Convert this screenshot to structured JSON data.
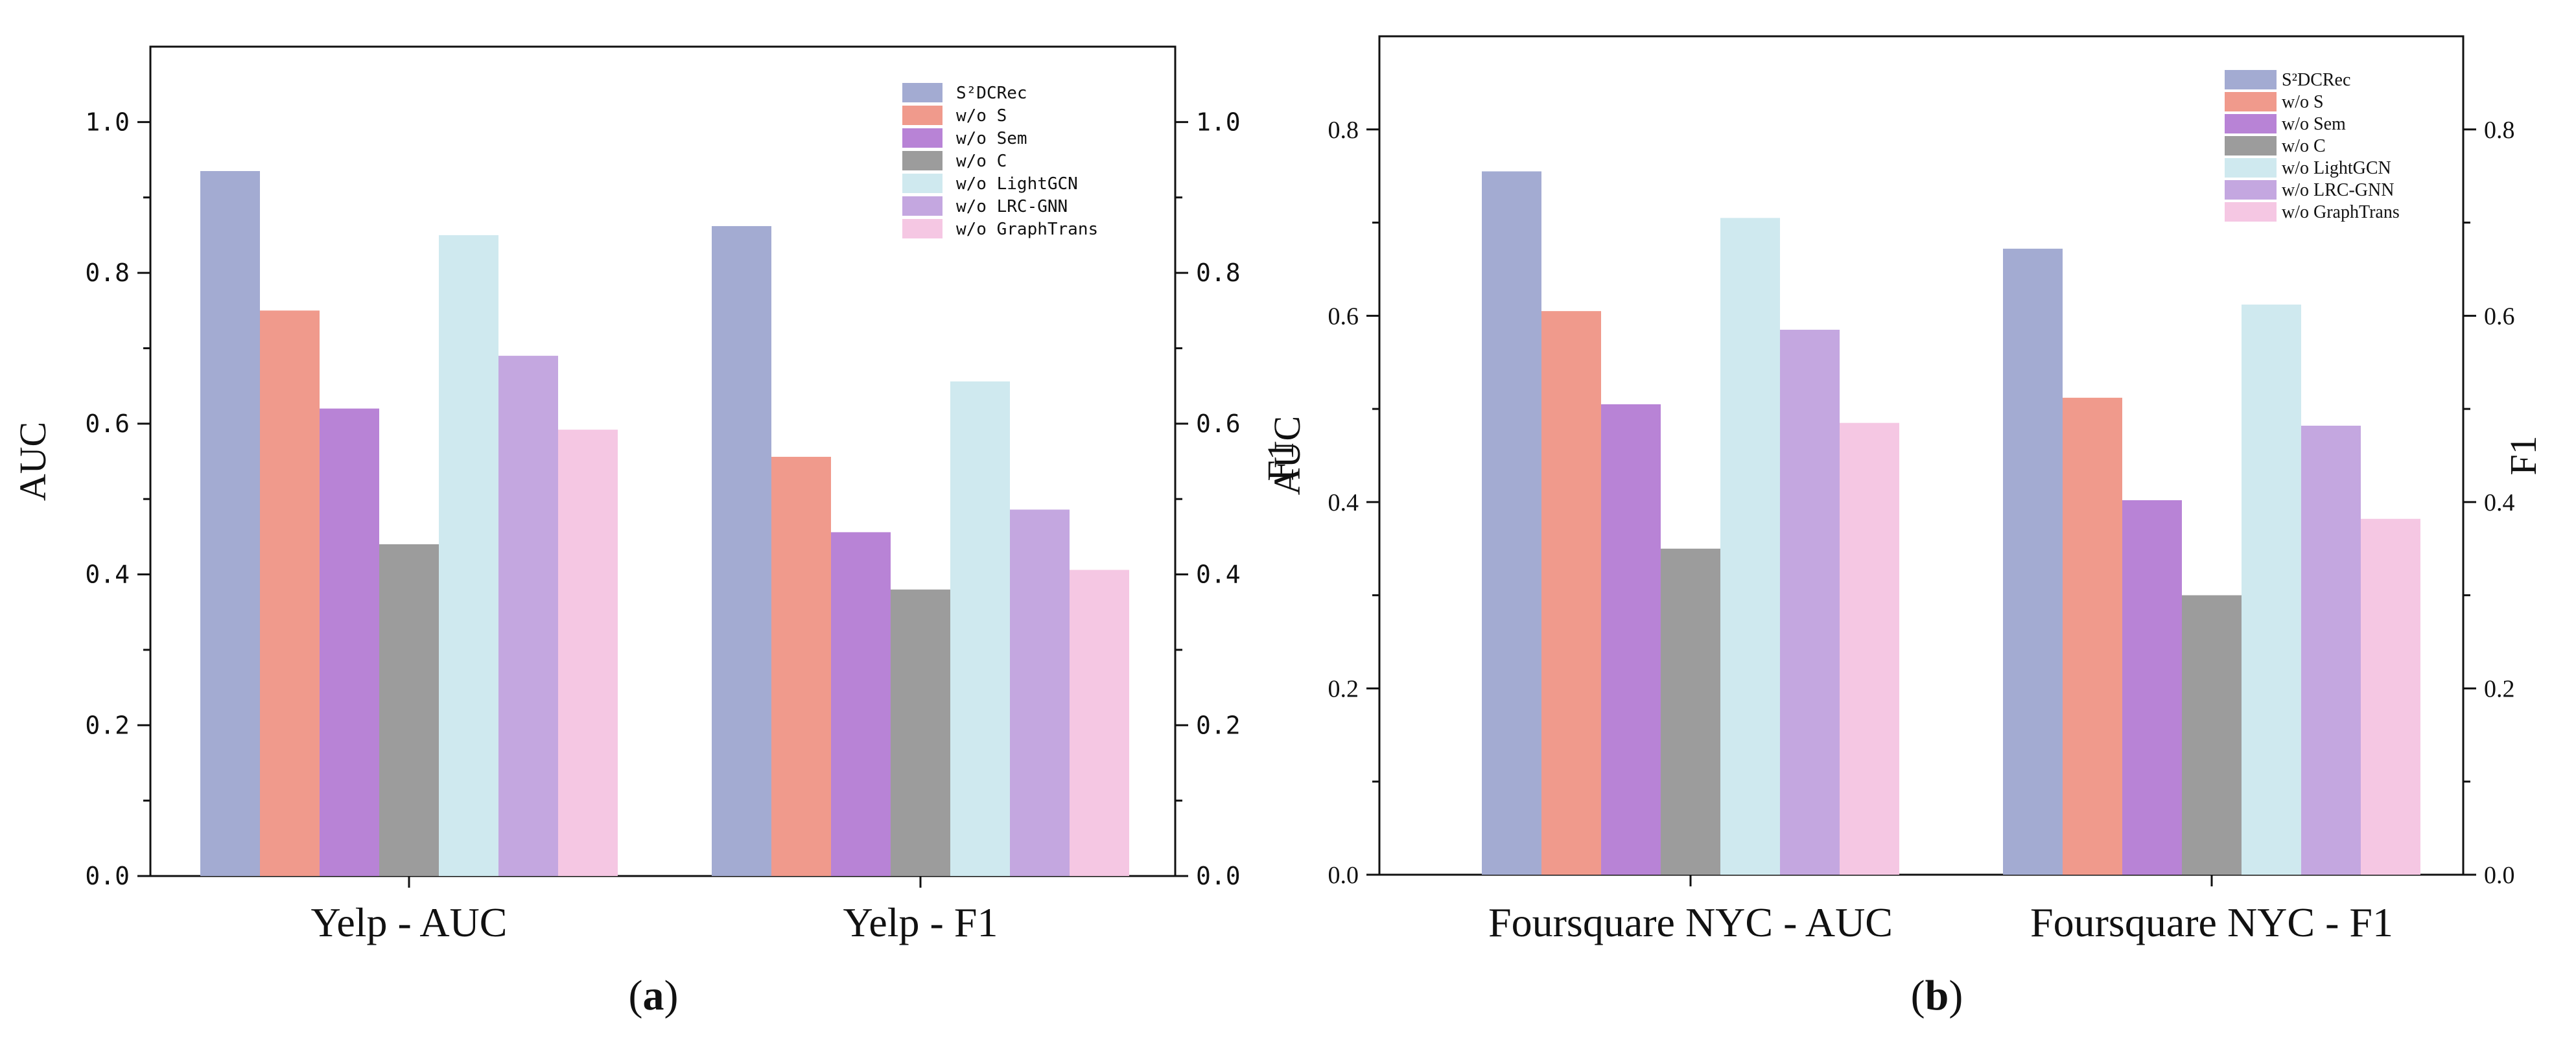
{
  "chart_data": [
    {
      "type": "bar",
      "panel": "a",
      "caption": {
        "open": "(",
        "letter": "a",
        "close": ")"
      },
      "categories": [
        "Yelp - AUC",
        "Yelp - F1"
      ],
      "series": [
        {
          "name": "S²DCRec",
          "color": "#a3abd2",
          "values": [
            0.935,
            0.862
          ]
        },
        {
          "name": "w/o S",
          "color": "#f09a8c",
          "values": [
            0.75,
            0.556
          ]
        },
        {
          "name": "w/o Sem",
          "color": "#b883d6",
          "values": [
            0.62,
            0.456
          ]
        },
        {
          "name": "w/o C",
          "color": "#9c9c9c",
          "values": [
            0.44,
            0.38
          ]
        },
        {
          "name": "w/o LightGCN",
          "color": "#cfe9ef",
          "values": [
            0.85,
            0.656
          ]
        },
        {
          "name": "w/o LRC-GNN",
          "color": "#c4a7e0",
          "values": [
            0.69,
            0.486
          ]
        },
        {
          "name": "w/o GraphTrans",
          "color": "#f5c7e3",
          "values": [
            0.592,
            0.406
          ]
        }
      ],
      "ylabel": "AUC",
      "y2label": "F1",
      "ylim": [
        0,
        1.1
      ],
      "yticks": [
        "0.0",
        "0.2",
        "0.4",
        "0.6",
        "0.8",
        "1.0"
      ],
      "legend_position": "top-right"
    },
    {
      "type": "bar",
      "panel": "b",
      "caption": {
        "open": "(",
        "letter": "b",
        "close": ")"
      },
      "categories": [
        "Foursquare NYC - AUC",
        "Foursquare NYC - F1"
      ],
      "series": [
        {
          "name": "S²DCRec",
          "color": "#a3abd2",
          "values": [
            0.755,
            0.672
          ]
        },
        {
          "name": "w/o S",
          "color": "#f09a8c",
          "values": [
            0.605,
            0.512
          ]
        },
        {
          "name": "w/o Sem",
          "color": "#b883d6",
          "values": [
            0.505,
            0.402
          ]
        },
        {
          "name": "w/o C",
          "color": "#9c9c9c",
          "values": [
            0.35,
            0.3
          ]
        },
        {
          "name": "w/o LightGCN",
          "color": "#cfe9ef",
          "values": [
            0.705,
            0.612
          ]
        },
        {
          "name": "w/o LRC-GNN",
          "color": "#c4a7e0",
          "values": [
            0.585,
            0.482
          ]
        },
        {
          "name": "w/o GraphTrans",
          "color": "#f5c7e3",
          "values": [
            0.485,
            0.382
          ]
        }
      ],
      "ylabel": "AUC",
      "y2label": "F1",
      "ylim": [
        0,
        0.9
      ],
      "yticks": [
        "0.0",
        "0.2",
        "0.4",
        "0.6",
        "0.8"
      ],
      "legend_position": "top-right"
    }
  ]
}
